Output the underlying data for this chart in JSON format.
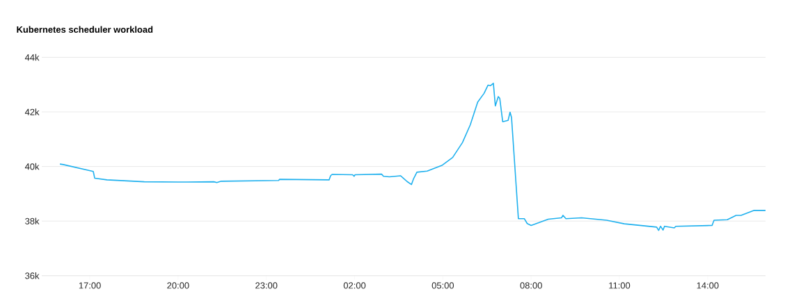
{
  "chart_data": {
    "type": "line",
    "title": "Kubernetes scheduler workload",
    "x": [
      "2000-01-01T15:59",
      "2000-01-01T16:06",
      "2000-01-01T17:07",
      "2000-01-01T17:10",
      "2000-01-01T17:35",
      "2000-01-01T18:51",
      "2000-01-01T20:17",
      "2000-01-01T21:13",
      "2000-01-01T21:19",
      "2000-01-01T21:28",
      "2000-01-01T23:25",
      "2000-01-01T23:27",
      "2000-01-02T01:08",
      "2000-01-02T01:11",
      "2000-01-02T01:14",
      "2000-01-02T01:56",
      "2000-01-02T01:59",
      "2000-01-02T02:01",
      "2000-01-02T02:55",
      "2000-01-02T02:59",
      "2000-01-02T03:11",
      "2000-01-02T03:34",
      "2000-01-02T03:40",
      "2000-01-02T03:47",
      "2000-01-02T03:56",
      "2000-01-02T04:00",
      "2000-01-02T04:07",
      "2000-01-02T04:28",
      "2000-01-02T04:59",
      "2000-01-02T05:20",
      "2000-01-02T05:40",
      "2000-01-02T05:56",
      "2000-01-02T06:11",
      "2000-01-02T06:24",
      "2000-01-02T06:32",
      "2000-01-02T06:37",
      "2000-01-02T06:43",
      "2000-01-02T06:47",
      "2000-01-02T06:53",
      "2000-01-02T06:56",
      "2000-01-02T07:02",
      "2000-01-02T07:13",
      "2000-01-02T07:17",
      "2000-01-02T07:20",
      "2000-01-02T07:34",
      "2000-01-02T07:46",
      "2000-01-02T07:52",
      "2000-01-02T08:00",
      "2000-01-02T08:35",
      "2000-01-02T09:02",
      "2000-01-02T09:05",
      "2000-01-02T09:11",
      "2000-01-02T09:43",
      "2000-01-02T10:34",
      "2000-01-02T11:10",
      "2000-01-02T12:16",
      "2000-01-02T12:20",
      "2000-01-02T12:24",
      "2000-01-02T12:29",
      "2000-01-02T12:32",
      "2000-01-02T12:52",
      "2000-01-02T12:55",
      "2000-01-02T14:09",
      "2000-01-02T14:13",
      "2000-01-02T14:40",
      "2000-01-02T14:58",
      "2000-01-02T15:08",
      "2000-01-02T15:34",
      "2000-01-02T15:58"
    ],
    "series": [
      {
        "color": "#1eb0ee",
        "values": [
          40090,
          40070,
          39820,
          39570,
          39510,
          39440,
          39430,
          39440,
          39410,
          39460,
          39490,
          39530,
          39510,
          39660,
          39710,
          39700,
          39640,
          39700,
          39720,
          39640,
          39620,
          39660,
          39560,
          39450,
          39340,
          39540,
          39790,
          39830,
          40050,
          40330,
          40880,
          41530,
          42360,
          42680,
          42980,
          42960,
          43050,
          42220,
          42560,
          42500,
          41640,
          41690,
          41990,
          41800,
          38090,
          38090,
          37910,
          37840,
          38070,
          38120,
          38210,
          38090,
          38120,
          38030,
          37900,
          37780,
          37660,
          37810,
          37670,
          37810,
          37750,
          37810,
          37840,
          38030,
          38050,
          38210,
          38210,
          38390,
          38390
        ]
      }
    ],
    "xlim": [
      "2000-01-01T15:22",
      "2000-01-02T15:58"
    ],
    "ylim": [
      36000,
      44000
    ],
    "xticks": [
      {
        "value": "2000-01-01T17:00",
        "label": "17:00"
      },
      {
        "value": "2000-01-01T20:00",
        "label": "20:00"
      },
      {
        "value": "2000-01-01T23:00",
        "label": "23:00"
      },
      {
        "value": "2000-01-02T02:00",
        "label": "02:00"
      },
      {
        "value": "2000-01-02T05:00",
        "label": "05:00"
      },
      {
        "value": "2000-01-02T08:00",
        "label": "08:00"
      },
      {
        "value": "2000-01-02T11:00",
        "label": "11:00"
      },
      {
        "value": "2000-01-02T14:00",
        "label": "14:00"
      }
    ],
    "yticks": [
      {
        "value": 36000,
        "label": "36k"
      },
      {
        "value": 38000,
        "label": "38k"
      },
      {
        "value": 40000,
        "label": "40k"
      },
      {
        "value": 42000,
        "label": "42k"
      },
      {
        "value": 44000,
        "label": "44k"
      }
    ],
    "grid": "y",
    "marker": "none",
    "line_style": "solid"
  }
}
